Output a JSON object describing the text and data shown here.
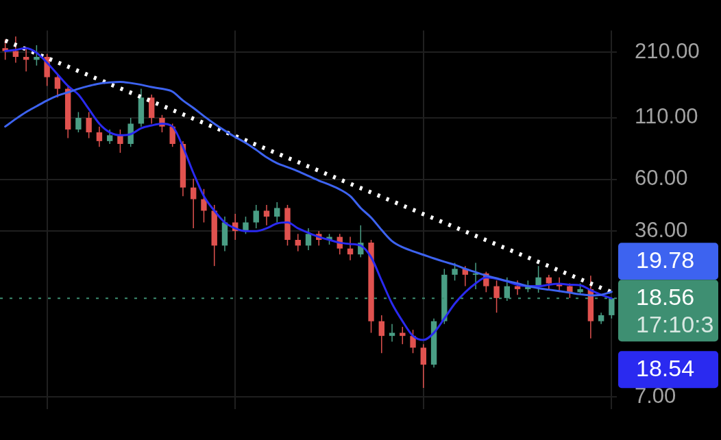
{
  "chart_data": {
    "type": "candlestick",
    "categories": [
      null,
      null,
      null,
      null,
      null,
      null,
      null,
      null,
      null,
      null,
      null,
      null,
      null,
      null,
      null,
      null,
      null,
      null,
      null,
      null,
      null,
      null,
      null,
      null,
      null,
      null,
      null,
      null,
      null,
      null,
      null,
      null,
      null,
      null,
      null,
      null,
      null,
      null,
      null,
      null,
      null,
      null,
      null,
      null,
      null,
      null,
      null,
      null,
      null,
      null,
      null,
      null,
      null,
      null,
      null,
      null,
      null,
      null,
      null
    ],
    "ohlc": [
      [
        218.6,
        238.2,
        194.9,
        212.4
      ],
      [
        212.4,
        245.1,
        189.4,
        200.6
      ],
      [
        200.6,
        218.6,
        173.8,
        194.9
      ],
      [
        194.9,
        225,
        184.1,
        200.6
      ],
      [
        200.6,
        206.4,
        150.6,
        164.2
      ],
      [
        164.2,
        168.9,
        134.3,
        146.4
      ],
      [
        146.4,
        150.6,
        90.0,
        98.0
      ],
      [
        98.0,
        116.4,
        95.3,
        109.9
      ],
      [
        109.9,
        116.4,
        90.0,
        95.3
      ],
      [
        95.3,
        100.9,
        82.6,
        87.4
      ],
      [
        87.4,
        98.0,
        85.0,
        92.6
      ],
      [
        92.6,
        98.0,
        77.9,
        85.0
      ],
      [
        85.0,
        109.9,
        82.6,
        103.8
      ],
      [
        103.8,
        146.4,
        100.9,
        134.3
      ],
      [
        134.3,
        138.2,
        103.8,
        109.9
      ],
      [
        109.9,
        113.1,
        95.3,
        100.9
      ],
      [
        100.9,
        103.8,
        82.6,
        85.0
      ],
      [
        85.0,
        87.4,
        50.8,
        55.3
      ],
      [
        55.3,
        60.3,
        37.0,
        49.3
      ],
      [
        49.3,
        54.5,
        39.2,
        44.0
      ],
      [
        44.0,
        46.6,
        25.5,
        31.2
      ],
      [
        31.2,
        41.5,
        29.5,
        39.2
      ],
      [
        39.2,
        42.7,
        33.0,
        36.0
      ],
      [
        36.0,
        41.5,
        35.0,
        39.2
      ],
      [
        39.2,
        46.6,
        37.0,
        44.0
      ],
      [
        44.0,
        46.6,
        38.1,
        41.5
      ],
      [
        41.5,
        47.9,
        39.2,
        45.2
      ],
      [
        45.2,
        46.6,
        31.2,
        33.0
      ],
      [
        33.0,
        35.0,
        29.5,
        31.2
      ],
      [
        31.2,
        37.0,
        29.8,
        35.0
      ],
      [
        35.0,
        36.0,
        31.2,
        33.0
      ],
      [
        33.0,
        35.0,
        31.5,
        34.0
      ],
      [
        34.0,
        35.0,
        28.6,
        30.3
      ],
      [
        30.3,
        34.0,
        27.0,
        28.6
      ],
      [
        28.6,
        38.1,
        27.8,
        32.1
      ],
      [
        32.1,
        33.0,
        13.2,
        14.8
      ],
      [
        14.8,
        15.7,
        10.8,
        12.8
      ],
      [
        12.8,
        14.4,
        12.1,
        13.2
      ],
      [
        13.2,
        14.0,
        11.8,
        12.8
      ],
      [
        12.8,
        13.6,
        10.8,
        11.4
      ],
      [
        11.4,
        11.8,
        7.67,
        9.64
      ],
      [
        9.64,
        15.2,
        9.37,
        14.8
      ],
      [
        14.8,
        24.8,
        14.4,
        23.4
      ],
      [
        23.4,
        26.3,
        22.1,
        24.8
      ],
      [
        24.8,
        25.5,
        20.9,
        23.4
      ],
      [
        23.4,
        26.3,
        20.3,
        23.7
      ],
      [
        23.7,
        24.1,
        19.7,
        20.9
      ],
      [
        20.9,
        22.1,
        16.1,
        18.6
      ],
      [
        18.6,
        22.8,
        18.1,
        20.9
      ],
      [
        20.9,
        22.1,
        19.2,
        20.3
      ],
      [
        20.3,
        22.1,
        19.7,
        20.9
      ],
      [
        20.9,
        25.5,
        19.6,
        22.8
      ],
      [
        22.8,
        23.4,
        20.3,
        21.5
      ],
      [
        21.5,
        22.8,
        19.7,
        20.9
      ],
      [
        20.9,
        21.5,
        18.6,
        19.7
      ],
      [
        19.7,
        21.5,
        19.2,
        20.3
      ],
      [
        20.3,
        23.2,
        12.5,
        14.8
      ],
      [
        14.8,
        16.1,
        14.4,
        15.7
      ],
      [
        15.7,
        18.6,
        15.2,
        18.56
      ]
    ],
    "colors": [
      "#e0524f",
      "#e0524f",
      "#e0524f",
      "#4a9e85",
      "#e0524f",
      "#e0524f",
      "#e0524f",
      "#4a9e85",
      "#e0524f",
      "#e0524f",
      "#4a9e85",
      "#e0524f",
      "#4a9e85",
      "#4a9e85",
      "#e0524f",
      "#e0524f",
      "#e0524f",
      "#e0524f",
      "#e0524f",
      "#e0524f",
      "#e0524f",
      "#4a9e85",
      "#e0524f",
      "#4a9e85",
      "#4a9e85",
      "#e0524f",
      "#4a9e85",
      "#e0524f",
      "#e0524f",
      "#4a9e85",
      "#e0524f",
      "#4a9e85",
      "#e0524f",
      "#e0524f",
      "#4a9e85",
      "#e0524f",
      "#e0524f",
      "#4a9e85",
      "#e0524f",
      "#e0524f",
      "#e0524f",
      "#4a9e85",
      "#4a9e85",
      "#4a9e85",
      "#e0524f",
      "#4a9e85",
      "#e0524f",
      "#e0524f",
      "#4a9e85",
      "#e0524f",
      "#4a9e85",
      "#4a9e85",
      "#e0524f",
      "#e0524f",
      "#e0524f",
      "#4a9e85",
      "#e0524f",
      "#4a9e85",
      "#4a9e85"
    ],
    "series": [
      {
        "type": "line",
        "color": "#3d63f0",
        "values": [
          100.9,
          108.7,
          116.4,
          123.3,
          130.5,
          136.7,
          141.4,
          146.4,
          150.6,
          154.1,
          155.9,
          156.8,
          155.0,
          152.4,
          148.9,
          146.4,
          142.3,
          130.5,
          121.2,
          111.9,
          103.8,
          96.9,
          91.0,
          85.9,
          80.2,
          74.5,
          70.3,
          67.6,
          64.9,
          62.0,
          59.2,
          56.9,
          54.3,
          50.8,
          45.2,
          41.1,
          36.4,
          32.6,
          30.7,
          29.5,
          28.5,
          27.5,
          26.6,
          25.8,
          24.8,
          24.0,
          23.2,
          22.6,
          22.0,
          21.5,
          20.9,
          20.5,
          20.2,
          19.9,
          19.6,
          19.3,
          19.1,
          19.2,
          19.78
        ],
        "value_labels": [
          null,
          null,
          null,
          null,
          null,
          null,
          null,
          null,
          null,
          null,
          null,
          null,
          null,
          null,
          null,
          null,
          null,
          null,
          null,
          null,
          null,
          null,
          null,
          null,
          null,
          null,
          null,
          null,
          null,
          null,
          null,
          null,
          null,
          null,
          null,
          null,
          null,
          null,
          null,
          null,
          null,
          null,
          null,
          null,
          null,
          null,
          null,
          null,
          null,
          null,
          null,
          null,
          null,
          null,
          null,
          null,
          null,
          null,
          "19.78"
        ]
      },
      {
        "type": "line",
        "color": "#2a2af0",
        "values": [
          212.4,
          215.0,
          218.6,
          208.8,
          189.4,
          168.9,
          150.6,
          138.2,
          119.8,
          103.8,
          95.3,
          92.6,
          93.6,
          99.2,
          102.0,
          103.8,
          100.9,
          82.6,
          63.8,
          50.8,
          44.0,
          39.2,
          37.0,
          36.0,
          36.0,
          37.0,
          38.8,
          39.2,
          37.0,
          35.4,
          34.0,
          33.0,
          32.1,
          31.7,
          31.2,
          27.8,
          22.1,
          17.6,
          14.8,
          12.8,
          12.3,
          13.2,
          15.2,
          17.6,
          19.7,
          21.5,
          22.8,
          22.5,
          21.9,
          21.2,
          20.9,
          20.9,
          21.2,
          21.4,
          21.2,
          21.1,
          20.1,
          19.2,
          18.54
        ],
        "value_labels": [
          null,
          null,
          null,
          null,
          null,
          null,
          null,
          null,
          null,
          null,
          null,
          null,
          null,
          null,
          null,
          null,
          null,
          null,
          null,
          null,
          null,
          null,
          null,
          null,
          null,
          null,
          null,
          null,
          null,
          null,
          null,
          null,
          null,
          null,
          null,
          null,
          null,
          null,
          null,
          null,
          null,
          null,
          null,
          null,
          null,
          null,
          null,
          null,
          null,
          null,
          null,
          null,
          null,
          null,
          null,
          null,
          null,
          null,
          "18.54"
        ]
      },
      {
        "type": "line",
        "color": "#ffffff",
        "line_style": "dotted",
        "values": [
          235.5,
          null,
          null,
          null,
          null,
          null,
          null,
          null,
          null,
          null,
          null,
          null,
          null,
          null,
          null,
          null,
          null,
          null,
          null,
          null,
          null,
          null,
          null,
          null,
          null,
          null,
          null,
          null,
          null,
          null,
          null,
          null,
          null,
          null,
          null,
          null,
          null,
          null,
          null,
          null,
          null,
          null,
          null,
          null,
          null,
          null,
          null,
          null,
          null,
          null,
          null,
          null,
          null,
          null,
          null,
          null,
          null,
          null,
          19.7
        ]
      }
    ],
    "ylim": [
      6.2,
      260
    ],
    "yticks": [
      {
        "value": 210,
        "label": "210.00"
      },
      {
        "value": 110,
        "label": "110.00"
      },
      {
        "value": 60,
        "label": "60.00"
      },
      {
        "value": 36,
        "label": "36.00"
      },
      {
        "value": 7,
        "label": "7.00"
      }
    ],
    "log": true,
    "grid": true,
    "marker": "none",
    "ref_lines": [
      {
        "axis": "y",
        "value": 18.56,
        "label": "18.56",
        "color": "#3e8f72",
        "line_style": "dotted"
      }
    ],
    "annotations": [
      "17:10:3"
    ]
  }
}
